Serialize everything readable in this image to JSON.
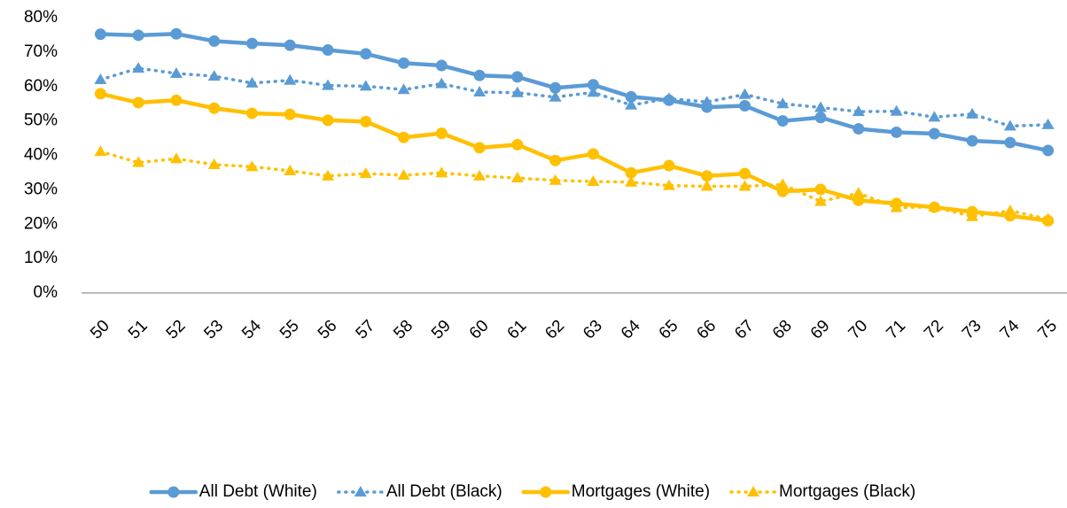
{
  "chart_data": {
    "type": "line",
    "categories": [
      "50",
      "51",
      "52",
      "53",
      "54",
      "55",
      "56",
      "57",
      "58",
      "59",
      "60",
      "61",
      "62",
      "63",
      "64",
      "65",
      "66",
      "67",
      "68",
      "69",
      "70",
      "71",
      "72",
      "73",
      "74",
      "75"
    ],
    "series": [
      {
        "name": "All Debt (White)",
        "color": "#5b9bd5",
        "style": "solid",
        "marker": "circle",
        "values": [
          75.2,
          74.9,
          75.3,
          73.2,
          72.5,
          72,
          70.6,
          69.5,
          66.8,
          66.1,
          63.2,
          62.8,
          59.6,
          60.5,
          57,
          56,
          54,
          54.4,
          50,
          51,
          47.7,
          46.7,
          46.3,
          44.2,
          43.7,
          41.4
        ]
      },
      {
        "name": "All Debt (Black)",
        "color": "#5b9bd5",
        "style": "dotted",
        "marker": "triangle",
        "values": [
          62,
          65.3,
          63.8,
          63,
          61,
          61.8,
          60.3,
          60.1,
          59.1,
          60.8,
          58.4,
          58.2,
          56.9,
          58.3,
          54.6,
          56.5,
          55.5,
          57.7,
          55,
          53.9,
          52.7,
          52.8,
          51.1,
          52,
          48.5,
          48.9
        ]
      },
      {
        "name": "Mortgages (White)",
        "color": "#ffc000",
        "style": "solid",
        "marker": "circle",
        "values": [
          57.9,
          55.3,
          56,
          53.7,
          52.2,
          51.9,
          50.2,
          49.8,
          45.2,
          46.4,
          42.2,
          43.1,
          38.5,
          40.4,
          34.9,
          37,
          34,
          34.7,
          29.5,
          30.1,
          26.9,
          26,
          24.9,
          23.6,
          22.4,
          21
        ]
      },
      {
        "name": "Mortgages (Black)",
        "color": "#ffc000",
        "style": "dotted",
        "marker": "triangle",
        "values": [
          41.1,
          37.9,
          39,
          37.3,
          36.7,
          35.5,
          34,
          34.7,
          34.2,
          34.9,
          34,
          33.4,
          32.7,
          32.4,
          32.2,
          31.2,
          31,
          31,
          31.5,
          26.6,
          29,
          24.8,
          25,
          22.2,
          23.9,
          21.5
        ]
      }
    ],
    "ylim": [
      0,
      80
    ],
    "yticks": [
      {
        "value": 0,
        "label": "0%"
      },
      {
        "value": 10,
        "label": "10%"
      },
      {
        "value": 20,
        "label": "20%"
      },
      {
        "value": 30,
        "label": "30%"
      },
      {
        "value": 40,
        "label": "40%"
      },
      {
        "value": 50,
        "label": "50%"
      },
      {
        "value": 60,
        "label": "60%"
      },
      {
        "value": 70,
        "label": "70%"
      },
      {
        "value": 80,
        "label": "80%"
      }
    ],
    "grid": false,
    "legend": "bottom"
  }
}
